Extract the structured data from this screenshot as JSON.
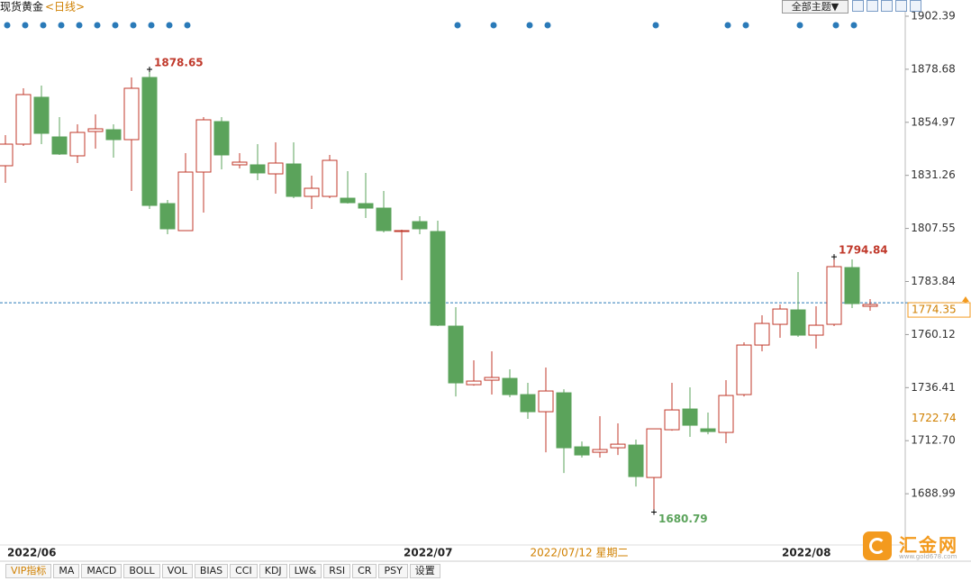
{
  "chart_data": {
    "type": "candlestick",
    "title": "现货黄金",
    "subtitle": "<日线>",
    "categories": [
      "2022/06",
      null,
      null,
      null,
      null,
      null,
      null,
      null,
      null,
      null,
      null,
      null,
      null,
      null,
      null,
      null,
      null,
      null,
      null,
      null,
      null,
      null,
      "2022/07",
      null,
      null,
      null,
      null,
      null,
      null,
      null,
      null,
      null,
      null,
      null,
      null,
      null,
      null,
      null,
      null,
      null,
      null,
      null,
      null,
      "2022/08",
      null,
      null,
      null,
      null,
      null
    ],
    "open": [
      1835.56,
      1845.22,
      1866.16,
      1848.44,
      1839.99,
      1850.86,
      1851.66,
      1847.23,
      1875.01,
      1818.65,
      1806.57,
      1832.74,
      1855.29,
      1835.96,
      1835.96,
      1831.93,
      1836.36,
      1821.87,
      1821.87,
      1821.06,
      1818.65,
      1816.64,
      1806.17,
      1810.6,
      1806.17,
      1763.9,
      1737.73,
      1739.74,
      1740.54,
      1733.3,
      1725.65,
      1734.1,
      1709.95,
      1707.53,
      1709.54,
      1710.75,
      1696.26,
      1717.6,
      1726.86,
      1718.0,
      1716.39,
      1733.3,
      1755.44,
      1764.7,
      1771.14,
      1759.87,
      1764.7,
      1790.06,
      1772.75
    ],
    "high": [
      1849.25,
      1870.18,
      1871.39,
      1857.3,
      1854.08,
      1858.51,
      1854.08,
      1875.01,
      1878.65,
      1820.26,
      1841.19,
      1857.3,
      1857.3,
      1841.19,
      1845.22,
      1846.03,
      1846.03,
      1831.13,
      1840.39,
      1833.14,
      1832.34,
      1824.29,
      1806.97,
      1813.01,
      1811.0,
      1772.35,
      1748.6,
      1752.62,
      1744.57,
      1738.53,
      1745.38,
      1735.71,
      1712.36,
      1723.64,
      1720.42,
      1713.17,
      1718.0,
      1738.53,
      1736.52,
      1725.25,
      1739.74,
      1756.65,
      1768.73,
      1773.56,
      1788.05,
      1772.75,
      1794.84,
      1793.69,
      1775.97
    ],
    "low": [
      1827.91,
      1844.42,
      1845.22,
      1840.39,
      1836.77,
      1843.21,
      1839.18,
      1824.29,
      1816.23,
      1804.96,
      1806.57,
      1814.62,
      1833.95,
      1834.35,
      1829.12,
      1823.08,
      1821.06,
      1816.23,
      1821.06,
      1818.65,
      1812.21,
      1805.77,
      1784.43,
      1804.96,
      1763.9,
      1732.49,
      1737.32,
      1733.3,
      1732.09,
      1722.43,
      1707.53,
      1698.27,
      1705.12,
      1705.12,
      1706.32,
      1692.23,
      1680.79,
      1717.19,
      1714.38,
      1715.58,
      1711.56,
      1732.49,
      1752.62,
      1758.66,
      1759.06,
      1753.83,
      1763.9,
      1771.95,
      1770.74
    ],
    "close": [
      1845.22,
      1867.36,
      1850.05,
      1840.79,
      1850.45,
      1852.06,
      1847.23,
      1870.18,
      1817.84,
      1807.38,
      1832.74,
      1856.09,
      1840.39,
      1837.17,
      1832.34,
      1836.77,
      1821.87,
      1825.49,
      1837.97,
      1819.05,
      1816.64,
      1806.57,
      1806.57,
      1807.38,
      1764.3,
      1738.53,
      1739.34,
      1740.95,
      1733.3,
      1725.65,
      1734.91,
      1709.54,
      1706.32,
      1708.74,
      1711.15,
      1696.66,
      1718.0,
      1726.45,
      1719.61,
      1716.79,
      1732.9,
      1755.44,
      1765.1,
      1771.54,
      1759.87,
      1764.3,
      1790.47,
      1773.96,
      1773.56
    ],
    "up_color": "#c0392b",
    "down_color": "#5ba35b",
    "labeled_highs": [
      8,
      46
    ],
    "labeled_lows": [
      36
    ],
    "ylim": [
      1666.1,
      1905.6
    ],
    "yticks": [
      1902.39,
      1878.68,
      1854.97,
      1831.26,
      1807.55,
      1783.84,
      1760.12,
      1736.41,
      {
        "value": 1712.7,
        "label": "1712.70"
      },
      1688.99
    ],
    "last_price": 1774.35,
    "reference_price": 1722.74,
    "crosshair_label": "2022/07/12 星期二"
  },
  "toolbar": {
    "theme_button": "全部主题▼"
  },
  "tabs": [
    "VIP指标",
    "MA",
    "MACD",
    "BOLL",
    "VOL",
    "BIAS",
    "CCI",
    "KDJ",
    "LW&",
    "RSI",
    "CR",
    "PSY",
    "设置"
  ],
  "logo": {
    "name": "汇金网",
    "url": "www.gold678.com"
  }
}
